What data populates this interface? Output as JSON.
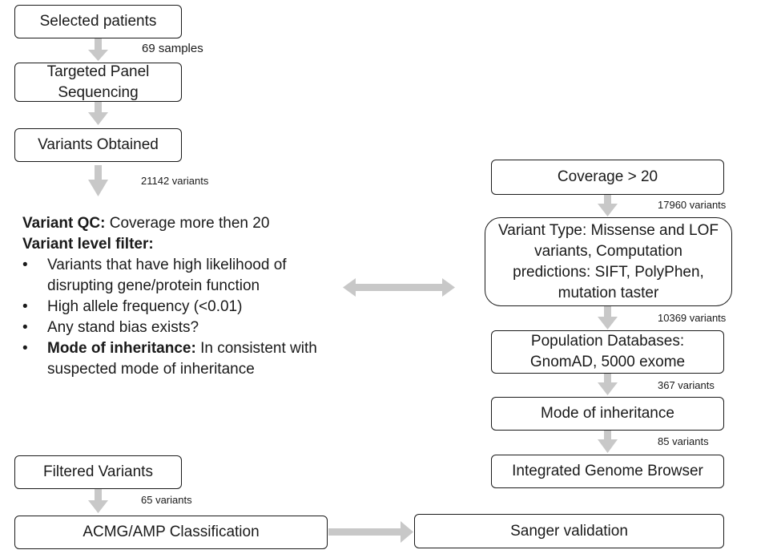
{
  "left_flow": {
    "selected_patients": "Selected patients",
    "samples_count": "69 samples",
    "targeted_panel": "Targeted Panel Sequencing",
    "variants_obtained": "Variants Obtained",
    "variants_count": "21142 variants",
    "filtered_variants": "Filtered Variants",
    "filtered_count": "65 variants",
    "acmg": "ACMG/AMP Classification"
  },
  "filter_text": {
    "qc_label": "Variant QC:",
    "qc_value": "Coverage more then 20",
    "level_label": "Variant level filter:",
    "bullets": {
      "b1": "Variants that have high likelihood of disrupting gene/protein function",
      "b2": "High allele frequency (<0.01)",
      "b3": "Any stand bias exists?",
      "b4_label": "Mode of inheritance:",
      "b4_value": "In consistent with suspected mode of inheritance"
    }
  },
  "right_flow": {
    "coverage": "Coverage > 20",
    "coverage_count": "17960 variants",
    "variant_type": "Variant Type: Missense and LOF variants, Computation predictions: SIFT, PolyPhen, mutation taster",
    "type_count": "10369 variants",
    "population_db": "Population Databases: GnomAD, 5000 exome",
    "pop_count": "367 variants",
    "mode_inheritance": "Mode of inheritance",
    "mode_count": "85 variants",
    "igb": "Integrated Genome Browser",
    "sanger": "Sanger validation"
  },
  "colors": {
    "arrow": "#c8c8c8",
    "border": "#1a1a1a"
  }
}
